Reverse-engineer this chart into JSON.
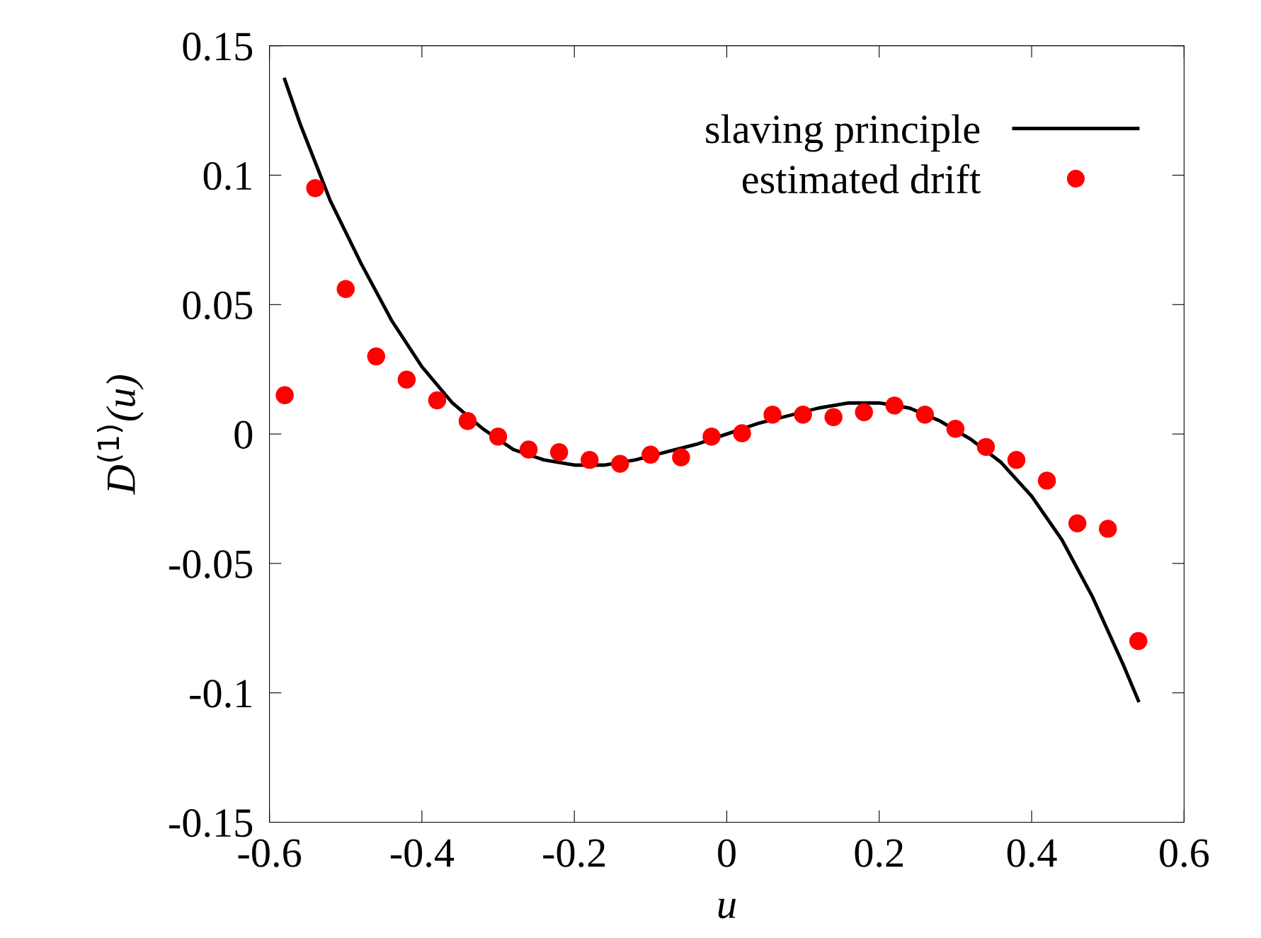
{
  "chart_data": {
    "type": "line",
    "xlabel": "u",
    "ylabel": "D$^{(1)}$(u)",
    "xlim": [
      -0.6,
      0.6
    ],
    "xticks": [
      -0.6,
      -0.4,
      -0.2,
      0,
      0.2,
      0.4,
      0.6
    ],
    "ylim": [
      -0.15,
      0.15
    ],
    "yticks": [
      -0.15,
      -0.1,
      -0.05,
      0,
      0.05,
      0.1,
      0.15
    ],
    "grid": false,
    "legend": "top right",
    "series": [
      {
        "name": "slaving principle",
        "color": "#000000",
        "marker": "none",
        "line_style": "solid",
        "x": [
          -0.58,
          -0.56,
          -0.52,
          -0.48,
          -0.44,
          -0.4,
          -0.36,
          -0.32,
          -0.28,
          -0.24,
          -0.2,
          -0.16,
          -0.12,
          -0.08,
          -0.04,
          0,
          0.04,
          0.08,
          0.12,
          0.16,
          0.2,
          0.24,
          0.28,
          0.32,
          0.36,
          0.4,
          0.44,
          0.48,
          0.52,
          0.54
        ],
        "values": [
          0.137,
          0.12,
          0.09,
          0.066,
          0.044,
          0.026,
          0.012,
          0.002,
          -0.006,
          -0.01,
          -0.012,
          -0.012,
          -0.01,
          -0.007,
          -0.004,
          0,
          0.004,
          0.007,
          0.01,
          0.012,
          0.012,
          0.01,
          0.005,
          -0.002,
          -0.011,
          -0.024,
          -0.041,
          -0.063,
          -0.089,
          -0.103
        ]
      },
      {
        "name": "estimated drift",
        "type": "scatter",
        "color": "#ff0000",
        "marker": "circle",
        "x": [
          -0.58,
          -0.54,
          -0.5,
          -0.46,
          -0.42,
          -0.38,
          -0.34,
          -0.3,
          -0.26,
          -0.22,
          -0.18,
          -0.14,
          -0.1,
          -0.06,
          -0.02,
          0.02,
          0.06,
          0.1,
          0.14,
          0.18,
          0.22,
          0.26,
          0.3,
          0.34,
          0.38,
          0.42,
          0.46,
          0.5,
          0.54
        ],
        "values": [
          0.015,
          0.095,
          0.056,
          0.03,
          0.021,
          0.013,
          0.005,
          -0.001,
          -0.006,
          -0.007,
          -0.01,
          -0.0115,
          -0.008,
          -0.009,
          -0.001,
          0.0003,
          0.0075,
          0.0075,
          0.0065,
          0.0084,
          0.011,
          0.0075,
          0.002,
          -0.005,
          -0.01,
          -0.018,
          -0.0345,
          -0.0366,
          -0.08
        ]
      }
    ]
  }
}
